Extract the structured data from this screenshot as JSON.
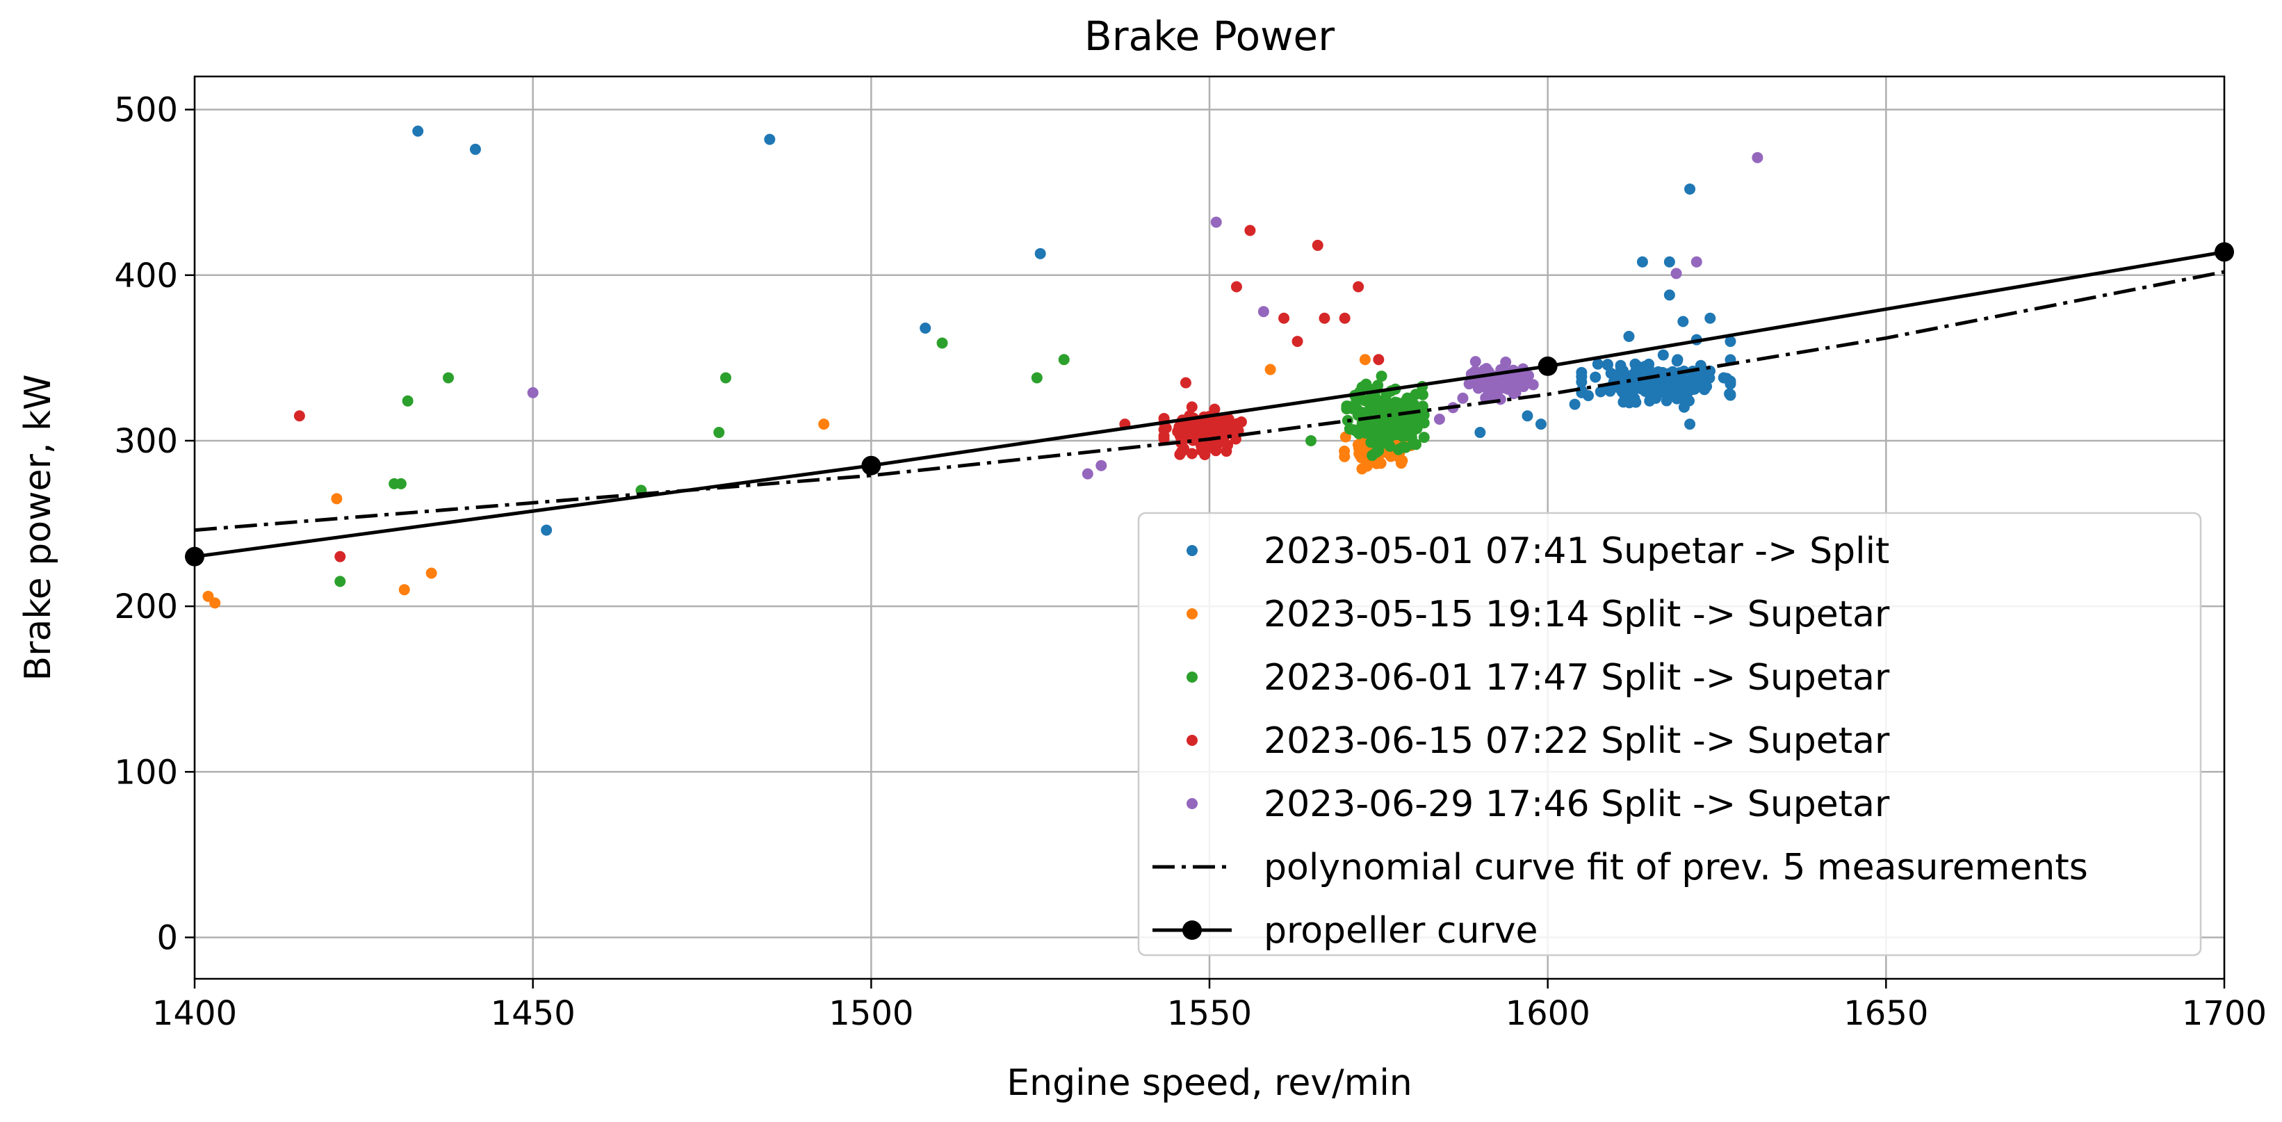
{
  "chart_data": {
    "type": "scatter",
    "title": "Brake Power",
    "xlabel": "Engine speed, rev/min",
    "ylabel": "Brake power, kW",
    "xlim": [
      1400,
      1700
    ],
    "ylim": [
      -25,
      520
    ],
    "xticks": [
      1400,
      1450,
      1500,
      1550,
      1600,
      1650,
      1700
    ],
    "yticks": [
      0,
      100,
      200,
      300,
      400,
      500
    ],
    "xtick_labels": [
      "1400",
      "1450",
      "1500",
      "1550",
      "1600",
      "1650",
      "1700"
    ],
    "ytick_labels": [
      "0",
      "100",
      "200",
      "300",
      "400",
      "500"
    ],
    "grid": true,
    "legend_position": "lower-right",
    "series": [
      {
        "name": "2023-05-01  07:41 Supetar -> Split",
        "color": "#1f77b4",
        "outliers": [
          [
            1433,
            487
          ],
          [
            1441.5,
            476
          ],
          [
            1485,
            482
          ],
          [
            1525,
            413
          ],
          [
            1508,
            368
          ],
          [
            1452,
            246
          ],
          [
            1590,
            305
          ],
          [
            1597,
            315
          ],
          [
            1599,
            310
          ],
          [
            1621,
            452
          ],
          [
            1614,
            408
          ],
          [
            1618,
            408
          ],
          [
            1618,
            388
          ],
          [
            1612,
            363
          ],
          [
            1620,
            372
          ],
          [
            1622,
            361
          ],
          [
            1624,
            374
          ],
          [
            1627,
            360
          ],
          [
            1621,
            310
          ],
          [
            1626,
            338
          ],
          [
            1604,
            322
          ]
        ],
        "cluster": {
          "cx": 1616,
          "cy": 335,
          "sx": 5,
          "sy": 7,
          "n": 160,
          "seed": 11
        }
      },
      {
        "name": "2023-05-15  19:14 Split -> Supetar",
        "color": "#ff7f0e",
        "outliers": [
          [
            1402,
            206
          ],
          [
            1403,
            202
          ],
          [
            1421,
            265
          ],
          [
            1431,
            210
          ],
          [
            1435,
            220
          ],
          [
            1493,
            310
          ],
          [
            1559,
            343
          ],
          [
            1573,
            349
          ]
        ],
        "cluster": {
          "cx": 1575,
          "cy": 295,
          "sx": 2.3,
          "sy": 5,
          "n": 55,
          "seed": 23
        }
      },
      {
        "name": "2023-06-01  17:47 Split -> Supetar",
        "color": "#2ca02c",
        "outliers": [
          [
            1421.5,
            215
          ],
          [
            1429.5,
            274
          ],
          [
            1430.5,
            274
          ],
          [
            1431.5,
            324
          ],
          [
            1437.5,
            338
          ],
          [
            1466,
            270
          ],
          [
            1477.5,
            305
          ],
          [
            1478.5,
            338
          ],
          [
            1510.5,
            359
          ],
          [
            1524.5,
            338
          ],
          [
            1528.5,
            349
          ],
          [
            1565,
            300
          ]
        ],
        "cluster": {
          "cx": 1576,
          "cy": 315,
          "sx": 2.6,
          "sy": 10,
          "n": 190,
          "seed": 37
        }
      },
      {
        "name": "2023-06-15  07:22 Split -> Supetar",
        "color": "#d62728",
        "outliers": [
          [
            1415.5,
            315
          ],
          [
            1421.5,
            230
          ],
          [
            1537.5,
            310
          ],
          [
            1546.5,
            335
          ],
          [
            1554,
            393
          ],
          [
            1556,
            427
          ],
          [
            1561,
            374
          ],
          [
            1563,
            360
          ],
          [
            1566,
            418
          ],
          [
            1567,
            374
          ],
          [
            1570,
            374
          ],
          [
            1572,
            393
          ],
          [
            1575,
            349
          ]
        ],
        "cluster": {
          "cx": 1549,
          "cy": 306,
          "sx": 2.6,
          "sy": 6,
          "n": 150,
          "seed": 53
        }
      },
      {
        "name": "2023-06-29  17:46 Split -> Supetar",
        "color": "#9467bd",
        "outliers": [
          [
            1450,
            329
          ],
          [
            1532,
            280
          ],
          [
            1534,
            285
          ],
          [
            1551,
            432
          ],
          [
            1558,
            378
          ],
          [
            1584,
            313
          ],
          [
            1586,
            320
          ],
          [
            1631,
            471
          ],
          [
            1622,
            408
          ],
          [
            1619,
            401
          ]
        ],
        "cluster": {
          "cx": 1593,
          "cy": 336,
          "sx": 2.6,
          "sy": 5,
          "n": 95,
          "seed": 71
        }
      }
    ],
    "lines": [
      {
        "name": "polynomial curve fit of prev. 5 measurements",
        "color": "#000000",
        "style": "dash-dot",
        "x": [
          1400,
          1500,
          1550,
          1600,
          1650,
          1700
        ],
        "y": [
          246,
          279,
          301,
          328,
          362,
          402
        ]
      },
      {
        "name": "propeller curve",
        "color": "#000000",
        "style": "solid-marker",
        "x": [
          1400,
          1500,
          1600,
          1700
        ],
        "y": [
          230,
          285,
          345,
          414
        ]
      }
    ]
  }
}
